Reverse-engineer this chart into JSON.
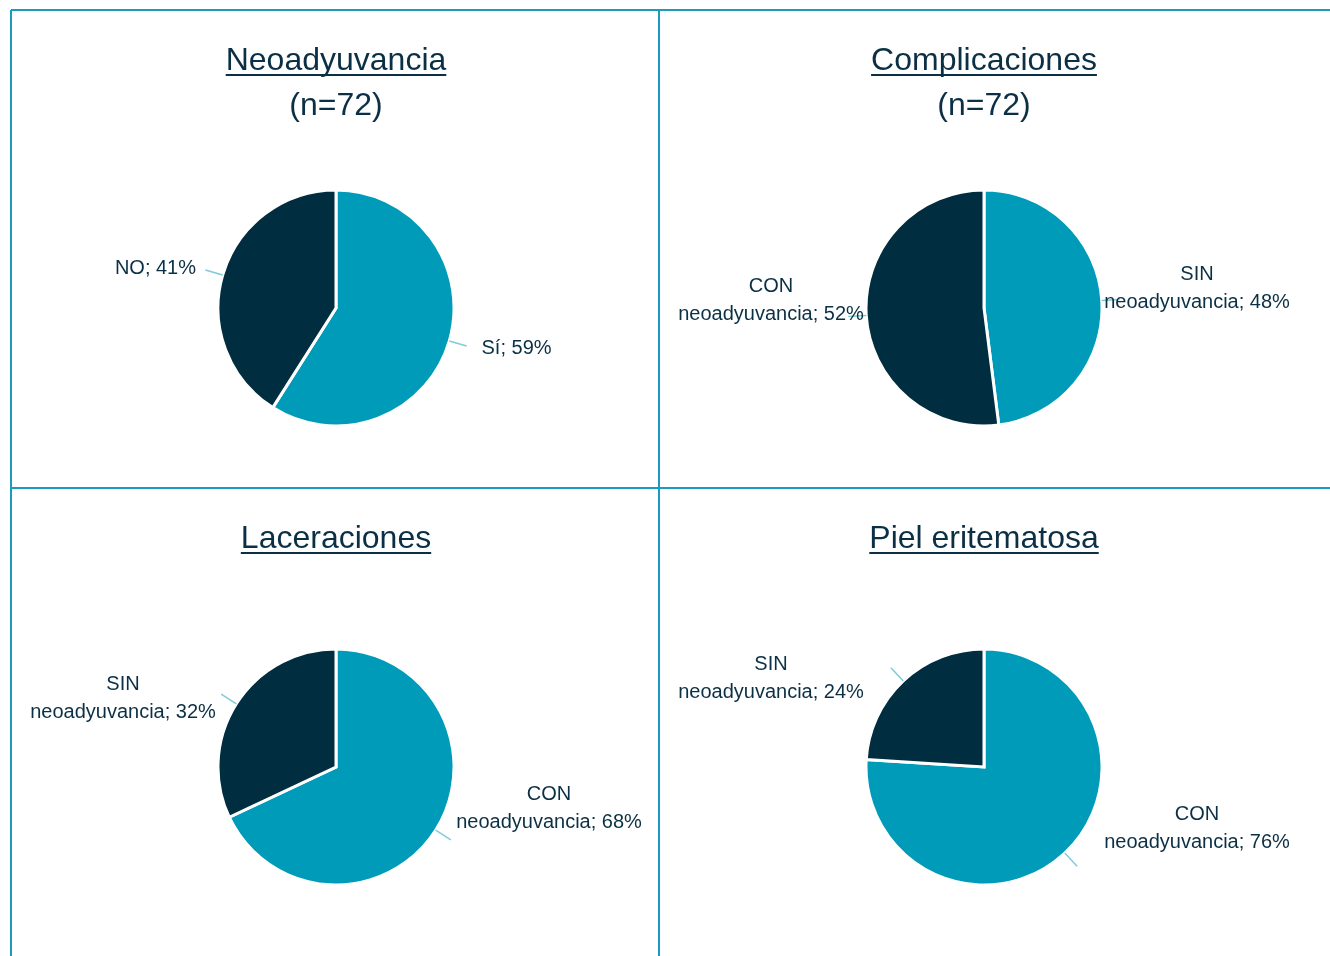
{
  "chart_data": [
    {
      "type": "pie",
      "title": "Neoadyuvancia",
      "subtitle": "(n=72)",
      "categories": [
        "Sí",
        "NO"
      ],
      "values": [
        59,
        41
      ],
      "value_labels": [
        "59%",
        "41%"
      ],
      "colors": [
        "#009bb9",
        "#002d40"
      ]
    },
    {
      "type": "pie",
      "title": "Complicaciones",
      "subtitle": "(n=72)",
      "categories": [
        "SIN neoadyuvancia",
        "CON neoadyuvancia"
      ],
      "values": [
        48,
        52
      ],
      "value_labels": [
        "48%",
        "52%"
      ],
      "colors": [
        "#009bb9",
        "#002d40"
      ]
    },
    {
      "type": "pie",
      "title": "Laceraciones",
      "categories": [
        "CON neoadyuvancia",
        "SIN neoadyuvancia"
      ],
      "values": [
        68,
        32
      ],
      "value_labels": [
        "68%",
        "32%"
      ],
      "colors": [
        "#009bb9",
        "#002d40"
      ]
    },
    {
      "type": "pie",
      "title": "Piel eritematosa",
      "categories": [
        "CON neoadyuvancia",
        "SIN neoadyuvancia"
      ],
      "values": [
        76,
        24
      ],
      "value_labels": [
        "76%",
        "24%"
      ],
      "colors": [
        "#009bb9",
        "#002d40"
      ]
    }
  ]
}
